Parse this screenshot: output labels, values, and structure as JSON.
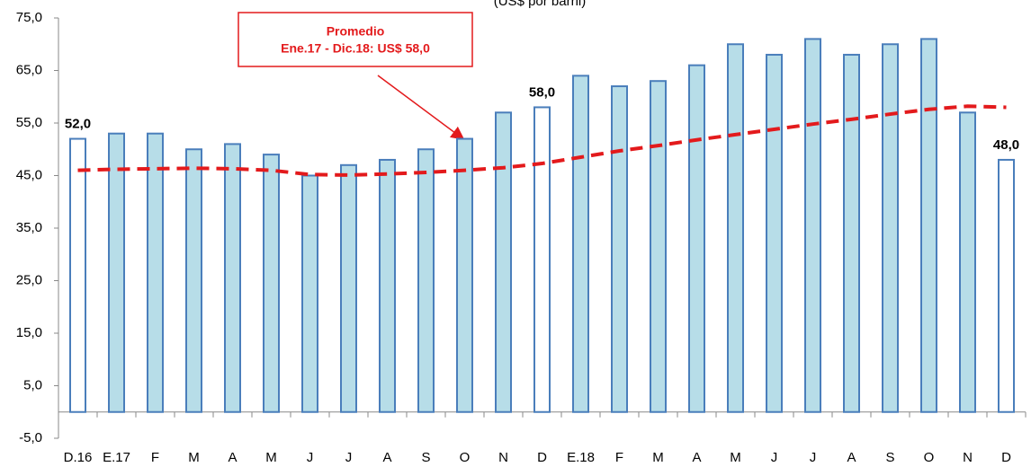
{
  "chart_data": {
    "type": "bar",
    "subtitle": "(US$ por barril)",
    "categories": [
      "D.16",
      "E.17",
      "F",
      "M",
      "A",
      "M",
      "J",
      "J",
      "A",
      "S",
      "O",
      "N",
      "D",
      "E.18",
      "F",
      "M",
      "A",
      "M",
      "J",
      "J",
      "A",
      "S",
      "O",
      "N",
      "D"
    ],
    "series": [
      {
        "type": "bar",
        "color": "#b7dde8",
        "edge_color": "#4a7ebb",
        "colors": [
          "#ffffff",
          "#b7dde8",
          "#b7dde8",
          "#b7dde8",
          "#b7dde8",
          "#b7dde8",
          "#b7dde8",
          "#b7dde8",
          "#b7dde8",
          "#b7dde8",
          "#b7dde8",
          "#b7dde8",
          "#ffffff",
          "#b7dde8",
          "#b7dde8",
          "#b7dde8",
          "#b7dde8",
          "#b7dde8",
          "#b7dde8",
          "#b7dde8",
          "#b7dde8",
          "#b7dde8",
          "#b7dde8",
          "#b7dde8",
          "#ffffff"
        ],
        "values": [
          52,
          53,
          53,
          50,
          51,
          49,
          45,
          47,
          48,
          50,
          52,
          57,
          58,
          64,
          62,
          63,
          66,
          70,
          68,
          71,
          68,
          70,
          71,
          57,
          48
        ],
        "value_labels": [
          "52,0",
          null,
          null,
          null,
          null,
          null,
          null,
          null,
          null,
          null,
          null,
          null,
          "58,0",
          null,
          null,
          null,
          null,
          null,
          null,
          null,
          null,
          null,
          null,
          null,
          "48,0"
        ]
      },
      {
        "type": "line",
        "color": "#e31a1c",
        "dashed": true,
        "values": [
          46,
          46.2,
          46.3,
          46.4,
          46.3,
          46,
          45.2,
          45.1,
          45.3,
          45.6,
          46,
          46.5,
          47.3,
          48.5,
          49.7,
          50.7,
          51.8,
          52.8,
          53.8,
          54.8,
          55.7,
          56.7,
          57.6,
          58.2,
          58
        ]
      }
    ],
    "annotation": {
      "title": "Promedio",
      "text": "Ene.17 - Dic.18: US$ 58,0",
      "color": "#e31a1c"
    },
    "ylim": [
      -5,
      75
    ],
    "yticks": [
      {
        "value": -5,
        "label": "-5,0"
      },
      {
        "value": 5,
        "label": "5,0"
      },
      {
        "value": 15,
        "label": "15,0"
      },
      {
        "value": 25,
        "label": "25,0"
      },
      {
        "value": 35,
        "label": "35,0"
      },
      {
        "value": 45,
        "label": "45,0"
      },
      {
        "value": 55,
        "label": "55,0"
      },
      {
        "value": 65,
        "label": "65,0"
      },
      {
        "value": 75,
        "label": "75,0"
      }
    ],
    "grid": false
  }
}
